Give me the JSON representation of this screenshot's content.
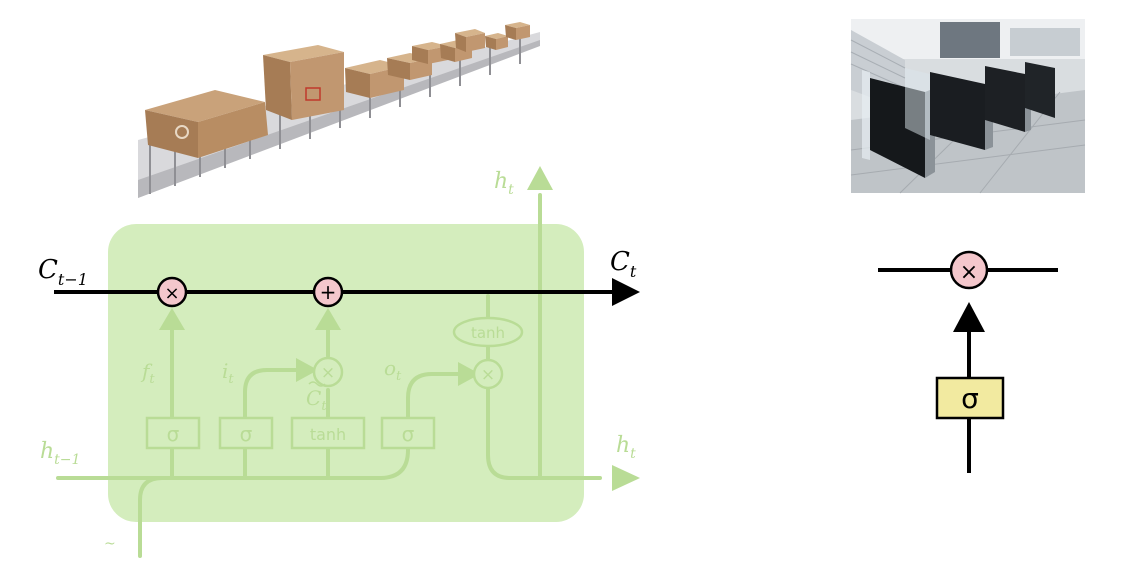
{
  "diagram": {
    "cell_state_in_label": "C",
    "cell_state_in_sub": "t−1",
    "cell_state_out_label": "C",
    "cell_state_out_sub": "t",
    "hidden_top_label": "h",
    "hidden_top_sub": "t",
    "hidden_right_label": "h",
    "hidden_right_sub": "t",
    "hidden_in_label": "h",
    "hidden_in_sub": "t−1",
    "forget_gate_label": "f",
    "forget_gate_sub": "t",
    "input_gate_label": "i",
    "input_gate_sub": "t",
    "candidate_label": "C",
    "candidate_sub": "t",
    "output_gate_label": "o",
    "output_gate_sub": "t",
    "sigma1": "σ",
    "sigma2": "σ",
    "tanh_box": "tanh",
    "sigma3": "σ",
    "tanh_oval": "tanh",
    "mult_symbol": "×",
    "add_symbol": "+",
    "bottom_mark": "~"
  },
  "gate_detail": {
    "sigma": "σ",
    "mult_symbol": "×"
  },
  "colors": {
    "cell_fill": "#cdeab0",
    "faded_green": "#c8e6a8",
    "faded_stroke": "#b9dc96",
    "pointwise_fill": "#f4c7cc",
    "sigma_box_fill": "#f2eaa0",
    "line": "#000000"
  },
  "images": {
    "conveyor": "conveyor-belt-boxes-photo",
    "turnstile": "turnstile-gates-photo"
  }
}
